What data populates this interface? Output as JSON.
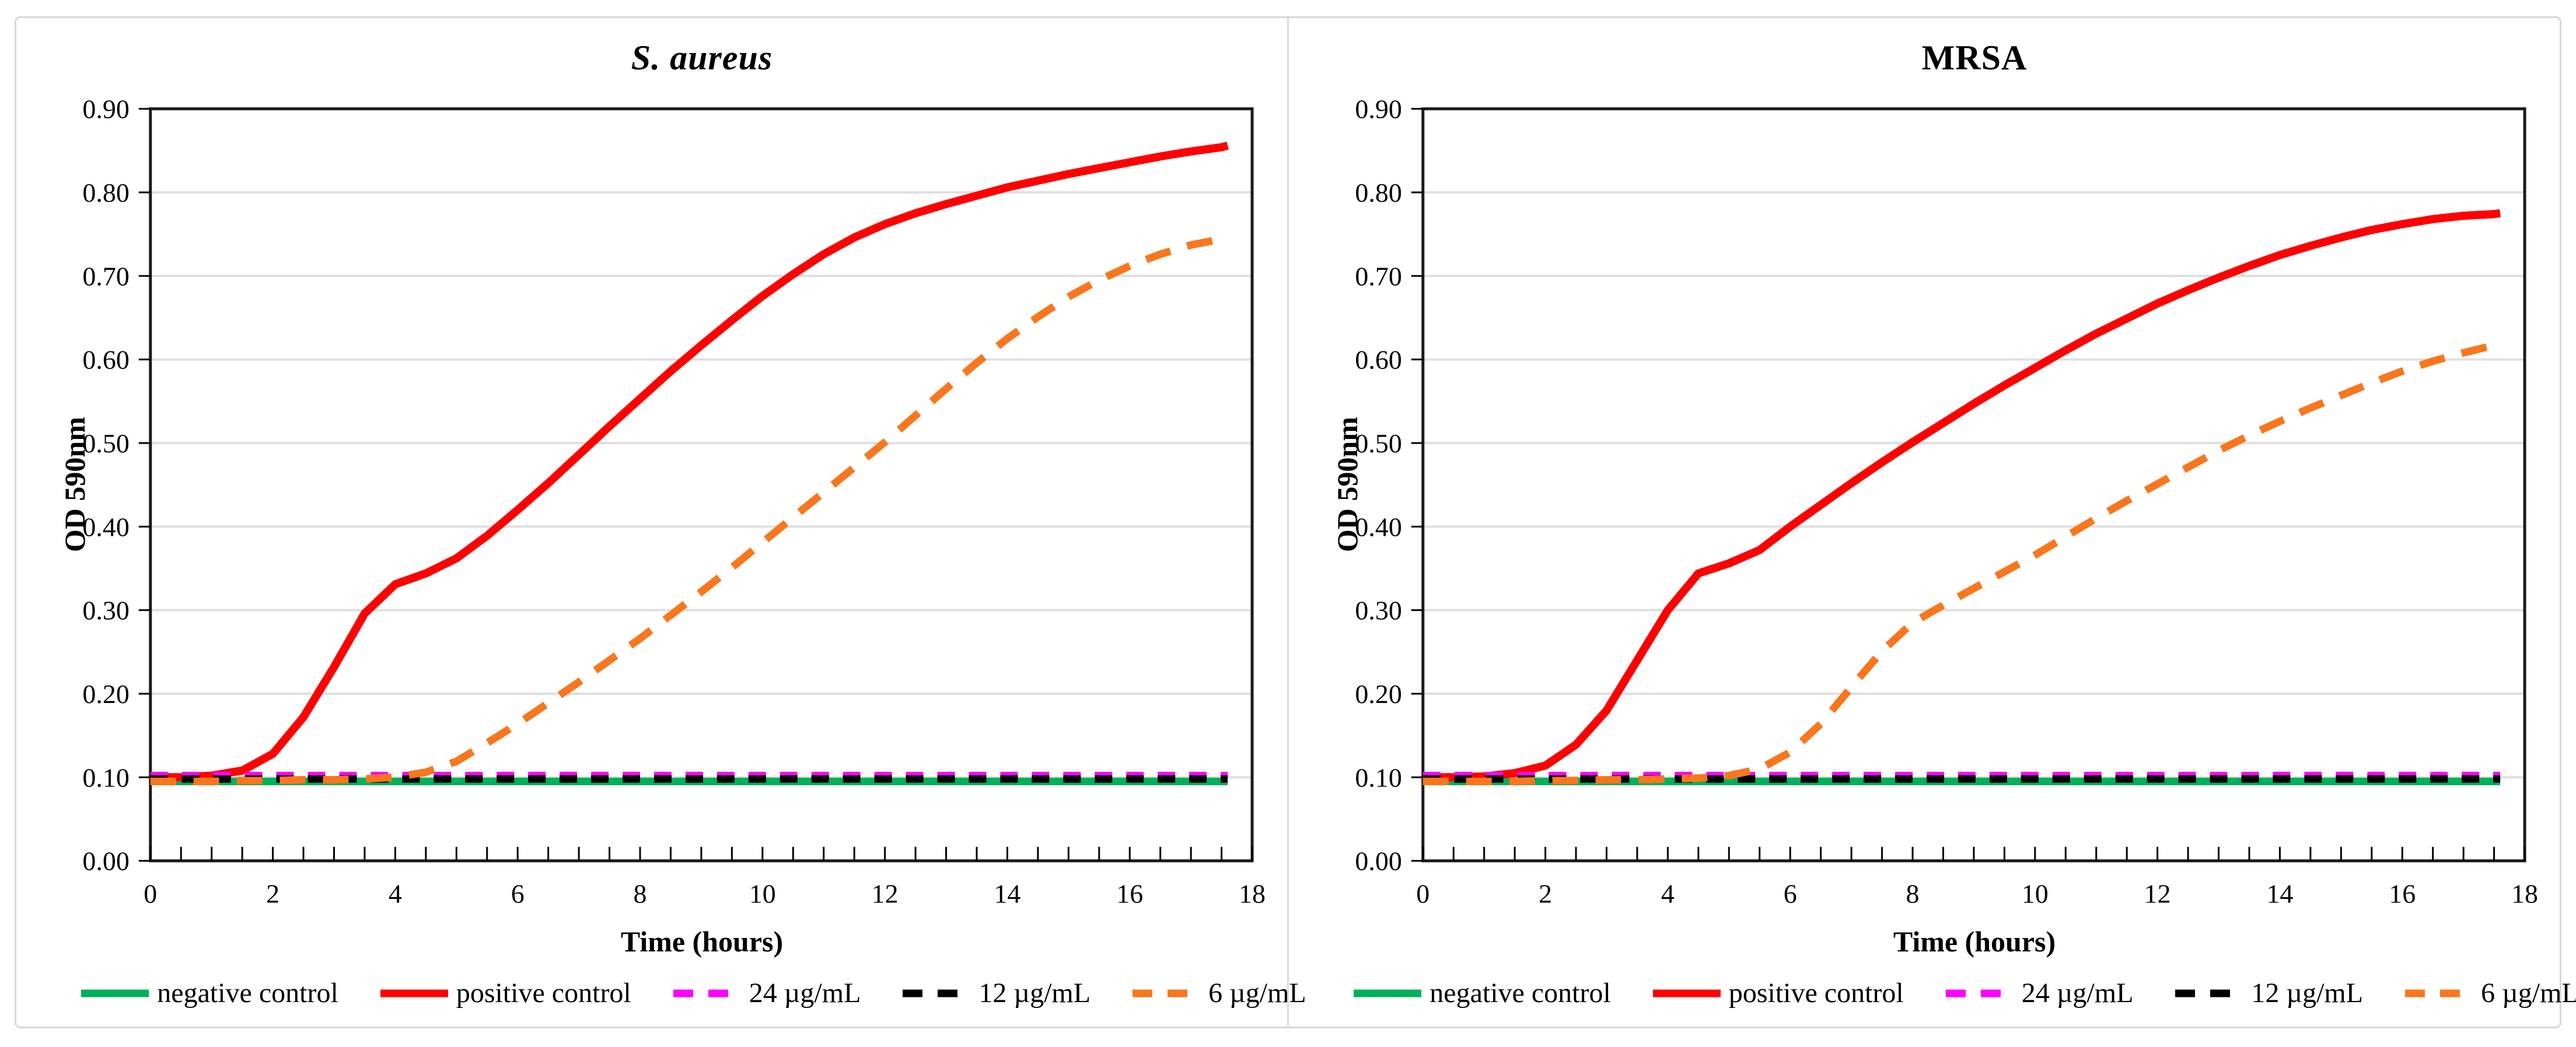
{
  "figure": {
    "background": "#ffffff",
    "border_color": "#d7d7d7",
    "accent_colors": {
      "negative_control": "#00b05a",
      "positive_control": "#fe0000",
      "conc_24": "#ff00ff",
      "conc_12": "#000000",
      "conc_6": "#f9761d",
      "gridline": "#dfdfdf",
      "frame": "#1a1a1a"
    }
  },
  "chart_data": [
    {
      "type": "line",
      "title": "S. aureus",
      "title_style": "italic",
      "xlabel": "Time (hours)",
      "ylabel": "OD 590nm",
      "xlim": [
        0,
        18
      ],
      "ylim": [
        0.0,
        0.9
      ],
      "grid": "horizontal",
      "legend_position": "bottom",
      "xtick_labels": [
        "0",
        "2",
        "4",
        "6",
        "8",
        "10",
        "12",
        "14",
        "16",
        "18"
      ],
      "xtick_values": [
        0,
        2,
        4,
        6,
        8,
        10,
        12,
        14,
        16,
        18
      ],
      "xtick_minor_step": 0.5,
      "ytick_labels": [
        "0.00",
        "0.10",
        "0.20",
        "0.30",
        "0.40",
        "0.50",
        "0.60",
        "0.70",
        "0.80",
        "0.90"
      ],
      "ytick_values": [
        0.0,
        0.1,
        0.2,
        0.3,
        0.4,
        0.5,
        0.6,
        0.7,
        0.8,
        0.9
      ],
      "x": [
        0,
        0.5,
        1,
        1.5,
        2,
        2.5,
        3,
        3.5,
        4,
        4.5,
        5,
        5.5,
        6,
        6.5,
        7,
        7.5,
        8,
        8.5,
        9,
        9.5,
        10,
        10.5,
        11,
        11.5,
        12,
        12.5,
        13,
        13.5,
        14,
        14.5,
        15,
        15.5,
        16,
        16.5,
        17,
        17.5,
        17.6
      ],
      "series": [
        {
          "name": "negative control",
          "color": "#00b05a",
          "dash": null,
          "width": 13,
          "constant": 0.095
        },
        {
          "name": "positive control",
          "color": "#fe0000",
          "dash": null,
          "width": 14,
          "values": [
            0.1,
            0.1,
            0.102,
            0.108,
            0.128,
            0.172,
            0.232,
            0.296,
            0.331,
            0.344,
            0.362,
            0.389,
            0.42,
            0.452,
            0.486,
            0.52,
            0.553,
            0.586,
            0.617,
            0.647,
            0.676,
            0.702,
            0.726,
            0.746,
            0.762,
            0.775,
            0.786,
            0.796,
            0.806,
            0.814,
            0.822,
            0.829,
            0.836,
            0.843,
            0.849,
            0.854,
            0.856
          ]
        },
        {
          "name": "24 µg/mL",
          "color": "#ff00ff",
          "dash": [
            30,
            24
          ],
          "width": 13,
          "constant": 0.102
        },
        {
          "name": "12 µg/mL",
          "color": "#000000",
          "dash": [
            30,
            24
          ],
          "width": 13,
          "constant": 0.098
        },
        {
          "name": "6 µg/mL",
          "color": "#f9761d",
          "dash": [
            44,
            30
          ],
          "width": 13,
          "values": [
            0.095,
            0.095,
            0.095,
            0.096,
            0.096,
            0.097,
            0.097,
            0.098,
            0.1,
            0.106,
            0.119,
            0.141,
            0.164,
            0.189,
            0.214,
            0.24,
            0.266,
            0.294,
            0.322,
            0.351,
            0.381,
            0.411,
            0.441,
            0.471,
            0.501,
            0.533,
            0.565,
            0.596,
            0.625,
            0.651,
            0.675,
            0.695,
            0.712,
            0.726,
            0.737,
            0.744,
            0.746
          ]
        }
      ]
    },
    {
      "type": "line",
      "title": "MRSA",
      "title_style": "normal",
      "xlabel": "Time (hours)",
      "ylabel": "OD 590nm",
      "xlim": [
        0,
        18
      ],
      "ylim": [
        0.0,
        0.9
      ],
      "grid": "horizontal",
      "legend_position": "bottom",
      "xtick_labels": [
        "0",
        "2",
        "4",
        "6",
        "8",
        "10",
        "12",
        "14",
        "16",
        "18"
      ],
      "xtick_values": [
        0,
        2,
        4,
        6,
        8,
        10,
        12,
        14,
        16,
        18
      ],
      "xtick_minor_step": 0.5,
      "ytick_labels": [
        "0.00",
        "0.10",
        "0.20",
        "0.30",
        "0.40",
        "0.50",
        "0.60",
        "0.70",
        "0.80",
        "0.90"
      ],
      "ytick_values": [
        0.0,
        0.1,
        0.2,
        0.3,
        0.4,
        0.5,
        0.6,
        0.7,
        0.8,
        0.9
      ],
      "x": [
        0,
        0.5,
        1,
        1.5,
        2,
        2.5,
        3,
        3.5,
        4,
        4.5,
        5,
        5.5,
        6,
        6.5,
        7,
        7.5,
        8,
        8.5,
        9,
        9.5,
        10,
        10.5,
        11,
        11.5,
        12,
        12.5,
        13,
        13.5,
        14,
        14.5,
        15,
        15.5,
        16,
        16.5,
        17,
        17.5,
        17.6
      ],
      "series": [
        {
          "name": "negative control",
          "color": "#00b05a",
          "dash": null,
          "width": 13,
          "constant": 0.095
        },
        {
          "name": "positive control",
          "color": "#fe0000",
          "dash": null,
          "width": 14,
          "values": [
            0.1,
            0.1,
            0.101,
            0.105,
            0.114,
            0.139,
            0.18,
            0.24,
            0.3,
            0.344,
            0.356,
            0.372,
            0.4,
            0.426,
            0.452,
            0.477,
            0.501,
            0.524,
            0.547,
            0.569,
            0.59,
            0.611,
            0.631,
            0.649,
            0.667,
            0.683,
            0.698,
            0.712,
            0.725,
            0.736,
            0.746,
            0.755,
            0.762,
            0.768,
            0.772,
            0.774,
            0.775
          ]
        },
        {
          "name": "24 µg/mL",
          "color": "#ff00ff",
          "dash": [
            30,
            24
          ],
          "width": 13,
          "constant": 0.102
        },
        {
          "name": "12 µg/mL",
          "color": "#000000",
          "dash": [
            30,
            24
          ],
          "width": 13,
          "constant": 0.098
        },
        {
          "name": "6 µg/mL",
          "color": "#f9761d",
          "dash": [
            44,
            30
          ],
          "width": 13,
          "values": [
            0.095,
            0.095,
            0.095,
            0.095,
            0.096,
            0.096,
            0.097,
            0.097,
            0.098,
            0.099,
            0.102,
            0.11,
            0.13,
            0.164,
            0.208,
            0.251,
            0.285,
            0.306,
            0.326,
            0.346,
            0.366,
            0.388,
            0.41,
            0.431,
            0.451,
            0.471,
            0.491,
            0.509,
            0.526,
            0.542,
            0.557,
            0.572,
            0.586,
            0.598,
            0.608,
            0.617,
            0.621
          ]
        }
      ]
    }
  ]
}
